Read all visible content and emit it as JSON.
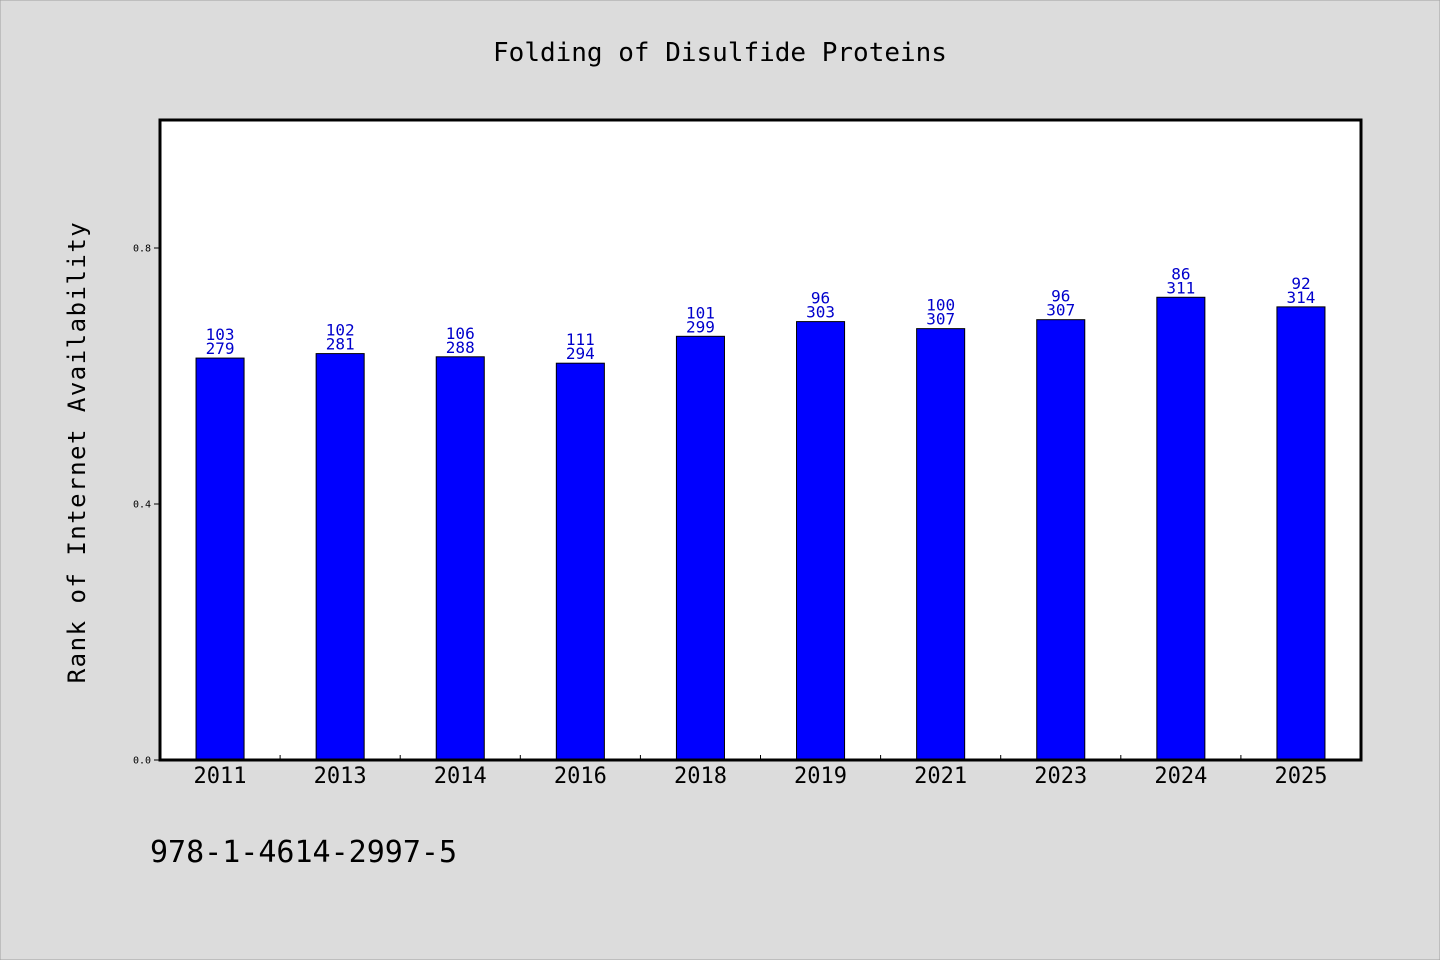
{
  "chart_data": {
    "type": "bar",
    "title": "Folding of Disulfide Proteins",
    "ylabel": "Rank of Internet Availability",
    "xlabel": "",
    "footer_text": "978-1-4614-2997-5",
    "ylim": [
      0,
      1.0
    ],
    "yticks": [
      {
        "value": 0.0,
        "label": "0.0"
      },
      {
        "value": 0.4,
        "label": "0.4"
      },
      {
        "value": 0.8,
        "label": "0.8"
      }
    ],
    "grid": false,
    "categories": [
      "2011",
      "2013",
      "2014",
      "2016",
      "2018",
      "2019",
      "2021",
      "2023",
      "2024",
      "2025"
    ],
    "values": [
      0.628,
      0.635,
      0.63,
      0.62,
      0.662,
      0.685,
      0.674,
      0.688,
      0.723,
      0.708
    ],
    "annotations_top": [
      "103",
      "102",
      "106",
      "111",
      "101",
      "96",
      "100",
      "96",
      "86",
      "92"
    ],
    "annotations_bottom": [
      "279",
      "281",
      "288",
      "294",
      "299",
      "303",
      "307",
      "307",
      "311",
      "314"
    ],
    "colors": {
      "bar": "#0000ff",
      "bar_edge": "#000000",
      "annotation": "#0000cc",
      "plot_background": "#ffffff",
      "figure_background": "#dcdcdc"
    }
  }
}
